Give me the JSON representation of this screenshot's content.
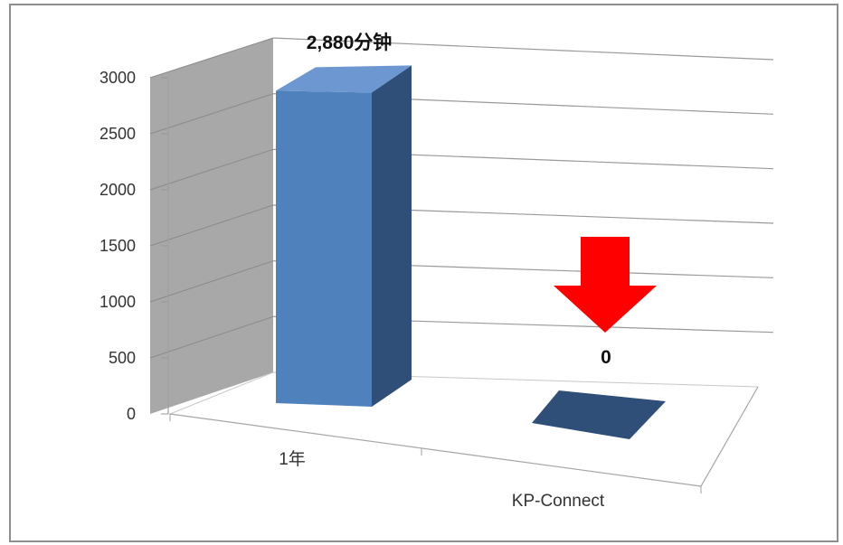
{
  "chart_data": {
    "type": "bar",
    "categories": [
      "1年",
      "KP-Connect"
    ],
    "values": [
      2880,
      0
    ],
    "data_labels": [
      "2,880分钟",
      "0"
    ],
    "ylim": [
      0,
      3000
    ],
    "yticks": [
      0,
      500,
      1000,
      1500,
      2000,
      2500,
      3000
    ],
    "title": "",
    "xlabel": "",
    "ylabel": "",
    "grid": true,
    "legend": "none",
    "colors": {
      "bar_front": "#4f81bd",
      "bar_side": "#2f4f78",
      "bar_top": "#6d97d0",
      "wall": "#a6a6a6",
      "arrow": "#ff0000"
    }
  },
  "annotation": {
    "arrow_icon": "down-arrow-icon"
  }
}
